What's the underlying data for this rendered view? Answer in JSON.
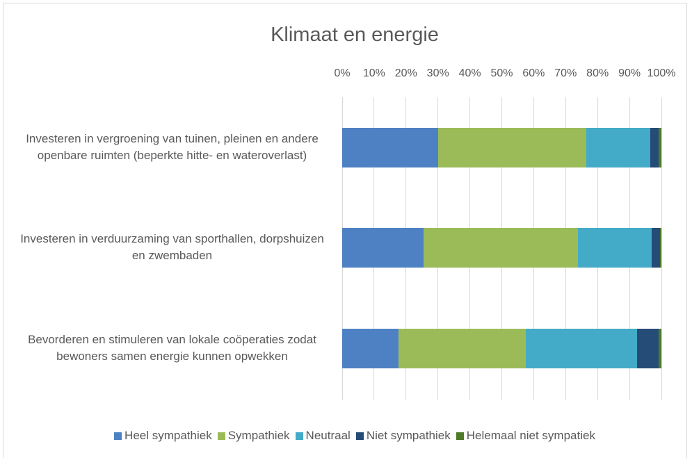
{
  "chart_data": {
    "type": "stacked_bar_horizontal",
    "title": "Klimaat en energie",
    "categories": [
      "Investeren in vergroening van tuinen, pleinen en andere openbare ruimten (beperkte hitte- en wateroverlast)",
      "Investeren in verduurzaming van sporthallen, dorpshuizen en zwembaden",
      "Bevorderen en stimuleren van lokale coöperaties zodat bewoners samen energie kunnen opwekken"
    ],
    "series": [
      {
        "name": "Heel sympathiek",
        "color": "#4e81c4",
        "values": [
          30,
          25.5,
          17.6
        ]
      },
      {
        "name": "Sympathiek",
        "color": "#9bbb59",
        "values": [
          46.5,
          48.4,
          39.9
        ]
      },
      {
        "name": "Neutraal",
        "color": "#43abc8",
        "values": [
          20,
          23,
          34.9
        ]
      },
      {
        "name": "Niet sympathiek",
        "color": "#254b77",
        "values": [
          2.7,
          2.7,
          6.7
        ]
      },
      {
        "name": "Helemaal niet sympatiek",
        "color": "#4f7a28",
        "values": [
          0.8,
          0.4,
          0.9
        ]
      }
    ],
    "xlim": [
      0,
      100
    ],
    "xticks": [
      {
        "value": 0,
        "label": "0%"
      },
      {
        "value": 10,
        "label": "10%"
      },
      {
        "value": 20,
        "label": "20%"
      },
      {
        "value": 30,
        "label": "30%"
      },
      {
        "value": 40,
        "label": "40%"
      },
      {
        "value": 50,
        "label": "50%"
      },
      {
        "value": 60,
        "label": "60%"
      },
      {
        "value": 70,
        "label": "70%"
      },
      {
        "value": 80,
        "label": "80%"
      },
      {
        "value": 90,
        "label": "90%"
      },
      {
        "value": 100,
        "label": "100%"
      }
    ],
    "grid": true,
    "legend": "bottom"
  }
}
